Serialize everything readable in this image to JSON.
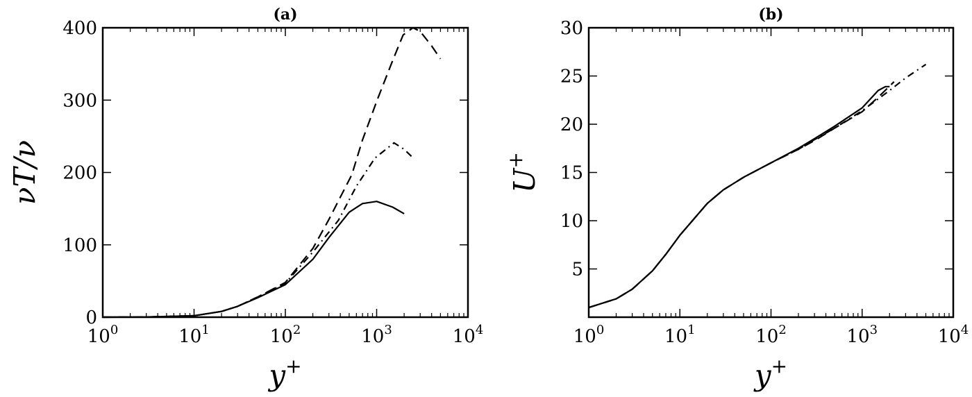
{
  "chart_data": [
    {
      "type": "line",
      "title": "(a)",
      "xlabel": "y+",
      "ylabel": "νT/ν",
      "xscale": "log",
      "xlim": [
        1,
        10000
      ],
      "ylim": [
        0,
        400
      ],
      "xticks": [
        "10^0",
        "10^1",
        "10^2",
        "10^3",
        "10^4"
      ],
      "yticks": [
        "0",
        "100",
        "200",
        "300",
        "400"
      ],
      "grid": false,
      "series": [
        {
          "style": "solid",
          "x": [
            1,
            3,
            10,
            20,
            30,
            50,
            100,
            200,
            300,
            500,
            700,
            1000,
            1500,
            2000
          ],
          "y": [
            0,
            0.3,
            2,
            8,
            15,
            27,
            45,
            80,
            110,
            145,
            157,
            160,
            152,
            143
          ]
        },
        {
          "style": "dashed",
          "x": [
            1,
            3,
            10,
            20,
            30,
            50,
            100,
            200,
            300,
            535,
            700,
            1020,
            1500,
            1950,
            2500,
            3000,
            4000,
            5000
          ],
          "y": [
            0,
            0.3,
            2,
            8,
            15,
            28,
            48,
            95,
            135,
            197,
            245,
            301,
            355,
            390,
            400,
            395,
            375,
            357
          ]
        },
        {
          "style": "dashdot",
          "x": [
            1,
            3,
            10,
            20,
            30,
            50,
            100,
            200,
            382,
            600,
            960,
            1550,
            2000,
            2560
          ],
          "y": [
            0,
            0.3,
            2,
            8,
            15,
            28,
            47,
            90,
            134,
            181,
            220,
            241,
            232,
            219
          ]
        }
      ]
    },
    {
      "type": "line",
      "title": "(b)",
      "xlabel": "y+",
      "ylabel": "U+",
      "xscale": "log",
      "xlim": [
        1,
        10000
      ],
      "ylim": [
        0,
        30
      ],
      "xticks": [
        "10^0",
        "10^1",
        "10^2",
        "10^3",
        "10^4"
      ],
      "yticks": [
        "5",
        "10",
        "15",
        "20",
        "25",
        "30"
      ],
      "grid": false,
      "series": [
        {
          "style": "solid",
          "x": [
            1,
            2,
            3,
            5,
            7,
            10,
            20,
            30,
            50,
            100,
            200,
            300,
            500,
            1000,
            1500,
            1800,
            2000
          ],
          "y": [
            1.0,
            1.9,
            2.9,
            4.8,
            6.5,
            8.5,
            11.8,
            13.2,
            14.5,
            16.0,
            17.5,
            18.5,
            19.8,
            21.7,
            23.5,
            23.9,
            23.9
          ]
        },
        {
          "style": "dashed",
          "x": [
            1,
            2,
            3,
            5,
            7,
            10,
            20,
            30,
            50,
            100,
            200,
            300,
            500,
            1000,
            1500,
            2240
          ],
          "y": [
            1.0,
            1.9,
            2.9,
            4.8,
            6.5,
            8.5,
            11.8,
            13.2,
            14.5,
            16.0,
            17.4,
            18.3,
            19.6,
            21.3,
            22.8,
            24.4
          ]
        },
        {
          "style": "dashdot",
          "x": [
            1,
            2,
            3,
            5,
            7,
            10,
            20,
            30,
            50,
            100,
            200,
            300,
            500,
            1000,
            2000,
            3000,
            5000
          ],
          "y": [
            1.0,
            1.9,
            2.9,
            4.8,
            6.5,
            8.5,
            11.8,
            13.2,
            14.5,
            16.0,
            17.4,
            18.4,
            19.6,
            21.4,
            23.5,
            24.8,
            26.2
          ]
        }
      ]
    }
  ]
}
